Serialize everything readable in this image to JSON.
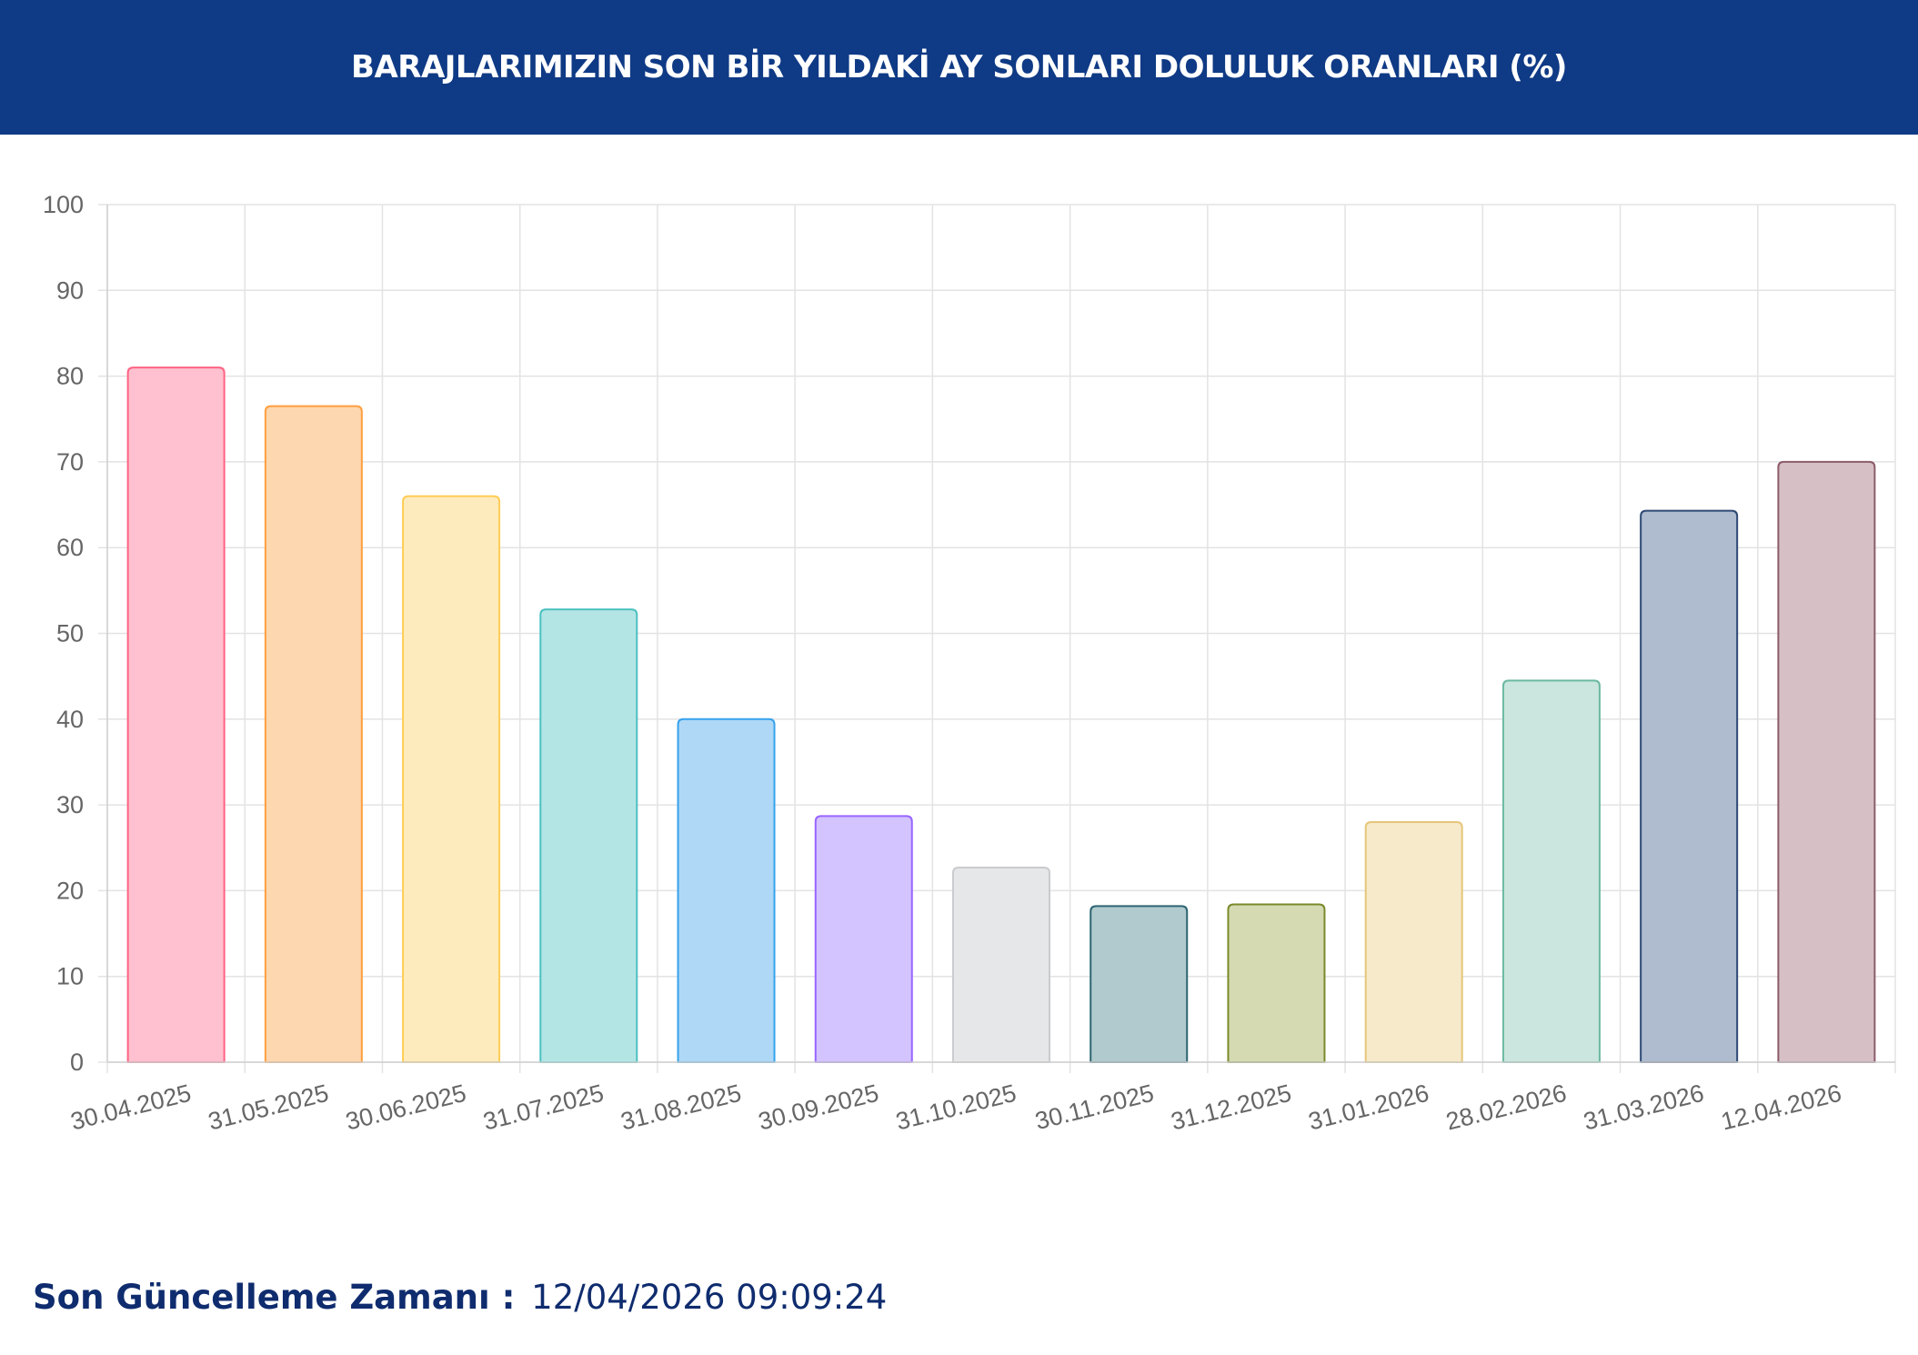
{
  "header": {
    "title": "BARAJLARIMIZIN SON BİR YILDAKİ AY SONLARI DOLULUK ORANLARI (%)",
    "background": "#0f3a85"
  },
  "chart_data": {
    "type": "bar",
    "title": "",
    "xlabel": "",
    "ylabel": "",
    "ylim": [
      0,
      100
    ],
    "yticks": [
      0,
      10,
      20,
      30,
      40,
      50,
      60,
      70,
      80,
      90,
      100
    ],
    "grid": true,
    "legend": "none",
    "categories": [
      "30.04.2025",
      "31.05.2025",
      "30.06.2025",
      "31.07.2025",
      "31.08.2025",
      "30.09.2025",
      "31.10.2025",
      "30.11.2025",
      "31.12.2025",
      "31.01.2026",
      "28.02.2026",
      "31.03.2026",
      "12.04.2026"
    ],
    "values": [
      81.0,
      76.5,
      66.0,
      52.8,
      40.0,
      28.7,
      22.7,
      18.2,
      18.4,
      28.0,
      44.5,
      64.3,
      70.0
    ],
    "fill_colors": [
      "#ffc0cf",
      "#fdd7b0",
      "#feebbd",
      "#b4e5e5",
      "#afd8f6",
      "#d3c3ff",
      "#e6e7e8",
      "#b1cace",
      "#d5dab2",
      "#f6eacb",
      "#cbe6de",
      "#afbccf",
      "#d6c0c6"
    ],
    "border_colors": [
      "#ff6384",
      "#ff9f40",
      "#ffcd56",
      "#4bc0c0",
      "#36a2eb",
      "#9966ff",
      "#c9cbcf",
      "#2d6671",
      "#7a8a2b",
      "#e5c67a",
      "#6bb9a2",
      "#2e4a74",
      "#8c5c6a"
    ]
  },
  "footer": {
    "label": "Son Güncelleme Zamanı :",
    "value": "12/04/2026 09:09:24"
  }
}
